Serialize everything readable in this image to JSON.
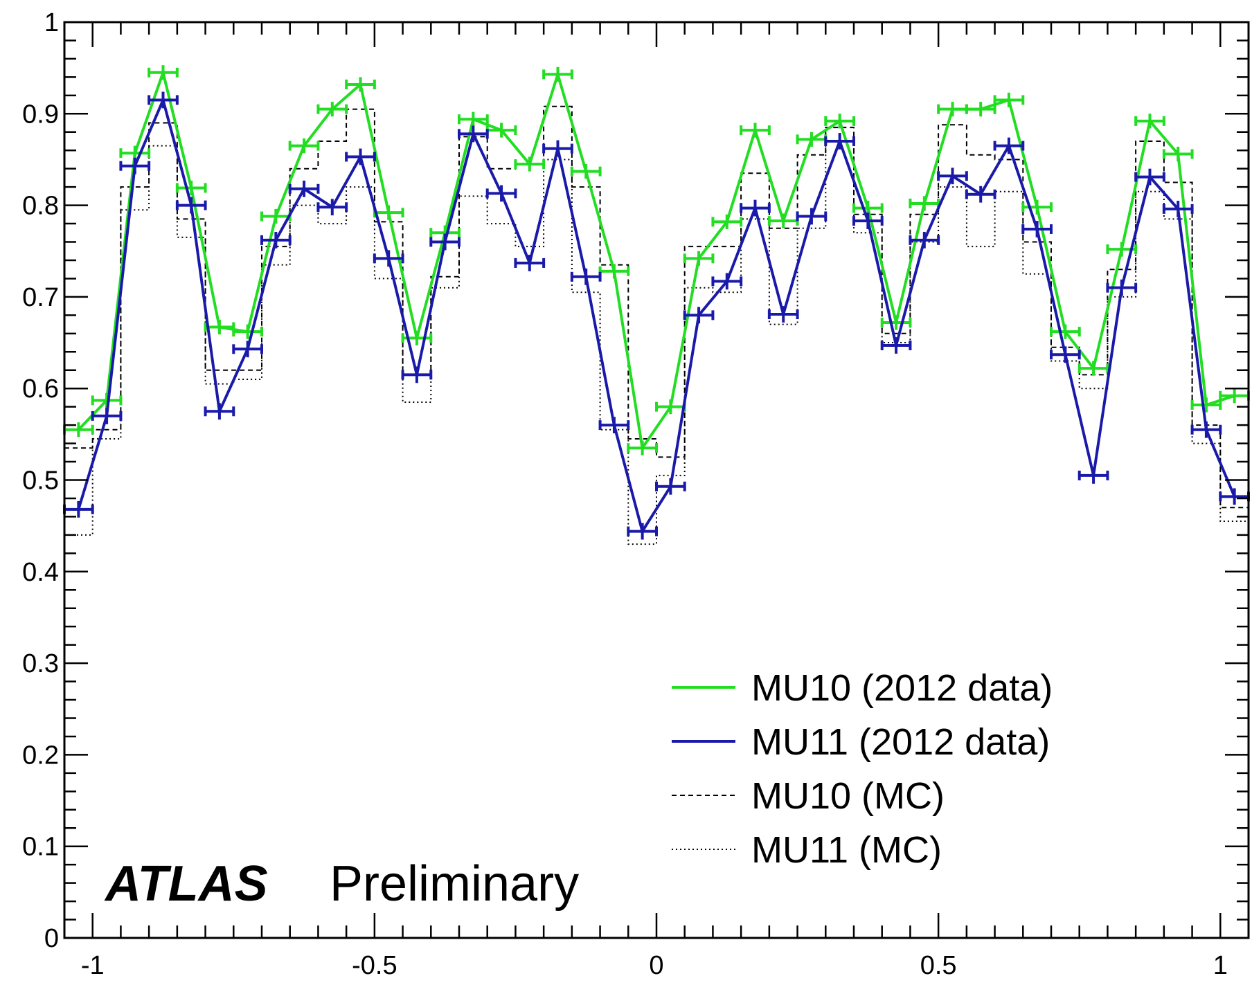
{
  "chart_data": {
    "type": "line",
    "title": "",
    "xlabel": "",
    "ylabel": "",
    "xlim": [
      -1.05,
      1.05
    ],
    "ylim": [
      0,
      1
    ],
    "x_ticks": [
      -1,
      -0.5,
      0,
      0.5,
      1
    ],
    "x_tick_labels": [
      "-1",
      "-0.5",
      "0",
      "0.5",
      "1"
    ],
    "y_ticks": [
      0,
      0.1,
      0.2,
      0.3,
      0.4,
      0.5,
      0.6,
      0.7,
      0.8,
      0.9,
      1
    ],
    "y_tick_labels": [
      "0",
      "0.1",
      "0.2",
      "0.3",
      "0.4",
      "0.5",
      "0.6",
      "0.7",
      "0.8",
      "0.9",
      "1"
    ],
    "x": [
      -1.025,
      -0.975,
      -0.925,
      -0.875,
      -0.825,
      -0.775,
      -0.725,
      -0.675,
      -0.625,
      -0.575,
      -0.525,
      -0.475,
      -0.425,
      -0.375,
      -0.325,
      -0.275,
      -0.225,
      -0.175,
      -0.125,
      -0.075,
      -0.025,
      0.025,
      0.075,
      0.125,
      0.175,
      0.225,
      0.275,
      0.325,
      0.375,
      0.425,
      0.475,
      0.525,
      0.575,
      0.625,
      0.675,
      0.725,
      0.775,
      0.825,
      0.875,
      0.925,
      0.975,
      1.025
    ],
    "bin_width": 0.05,
    "series": [
      {
        "name": "MU10 (2012 data)",
        "style": "data",
        "color": "#22dd22",
        "values": [
          0.555,
          0.587,
          0.857,
          0.945,
          0.819,
          0.667,
          0.662,
          0.788,
          0.865,
          0.905,
          0.932,
          0.792,
          0.655,
          0.77,
          0.894,
          0.882,
          0.845,
          0.943,
          0.837,
          0.728,
          0.535,
          0.58,
          0.742,
          0.782,
          0.882,
          0.783,
          0.872,
          0.892,
          0.797,
          0.672,
          0.802,
          0.905,
          0.905,
          0.915,
          0.798,
          0.662,
          0.622,
          0.752,
          0.892,
          0.856,
          0.582,
          0.592
        ]
      },
      {
        "name": "MU11 (2012 data)",
        "style": "data",
        "color": "#1a1aaa",
        "values": [
          0.468,
          0.57,
          0.843,
          0.915,
          0.8,
          0.575,
          0.643,
          0.762,
          0.818,
          0.798,
          0.853,
          0.742,
          0.615,
          0.76,
          0.878,
          0.813,
          0.737,
          0.862,
          0.722,
          0.56,
          0.444,
          0.493,
          0.68,
          0.717,
          0.797,
          0.681,
          0.788,
          0.87,
          0.783,
          0.647,
          0.762,
          0.832,
          0.812,
          0.865,
          0.774,
          0.637,
          0.505,
          0.71,
          0.831,
          0.796,
          0.555,
          0.482
        ]
      },
      {
        "name": "MU10 (MC)",
        "style": "dashed-step",
        "color": "#000000",
        "values": [
          0.535,
          0.555,
          0.82,
          0.89,
          0.785,
          0.62,
          0.62,
          0.755,
          0.84,
          0.87,
          0.905,
          0.782,
          0.615,
          0.722,
          0.875,
          0.84,
          0.845,
          0.908,
          0.82,
          0.735,
          0.545,
          0.525,
          0.755,
          0.755,
          0.835,
          0.775,
          0.855,
          0.885,
          0.79,
          0.66,
          0.79,
          0.888,
          0.855,
          0.85,
          0.76,
          0.645,
          0.615,
          0.73,
          0.87,
          0.825,
          0.56,
          0.47
        ]
      },
      {
        "name": "MU11 (MC)",
        "style": "dotted-step",
        "color": "#000000",
        "values": [
          0.44,
          0.545,
          0.795,
          0.865,
          0.765,
          0.605,
          0.61,
          0.735,
          0.8,
          0.78,
          0.82,
          0.72,
          0.585,
          0.71,
          0.81,
          0.78,
          0.755,
          0.85,
          0.705,
          0.555,
          0.43,
          0.505,
          0.71,
          0.705,
          0.785,
          0.67,
          0.775,
          0.87,
          0.77,
          0.65,
          0.76,
          0.82,
          0.755,
          0.815,
          0.725,
          0.63,
          0.6,
          0.7,
          0.815,
          0.785,
          0.54,
          0.455
        ]
      }
    ],
    "errors": {
      "MU10 (2012 data)": 0.008,
      "MU11 (2012 data)": 0.009
    },
    "legend": {
      "placement": "bottom-right",
      "entries": [
        {
          "label": "MU10 (2012 data)",
          "style": "solid",
          "color": "#22dd22"
        },
        {
          "label": "MU11 (2012 data)",
          "style": "solid",
          "color": "#1a1aaa"
        },
        {
          "label": "MU10 (MC)",
          "style": "dashed",
          "color": "#000000"
        },
        {
          "label": "MU11 (MC)",
          "style": "dotted",
          "color": "#000000"
        }
      ]
    },
    "annotation": {
      "bold_italic": "ATLAS",
      "regular": "Preliminary"
    },
    "grid": false
  }
}
